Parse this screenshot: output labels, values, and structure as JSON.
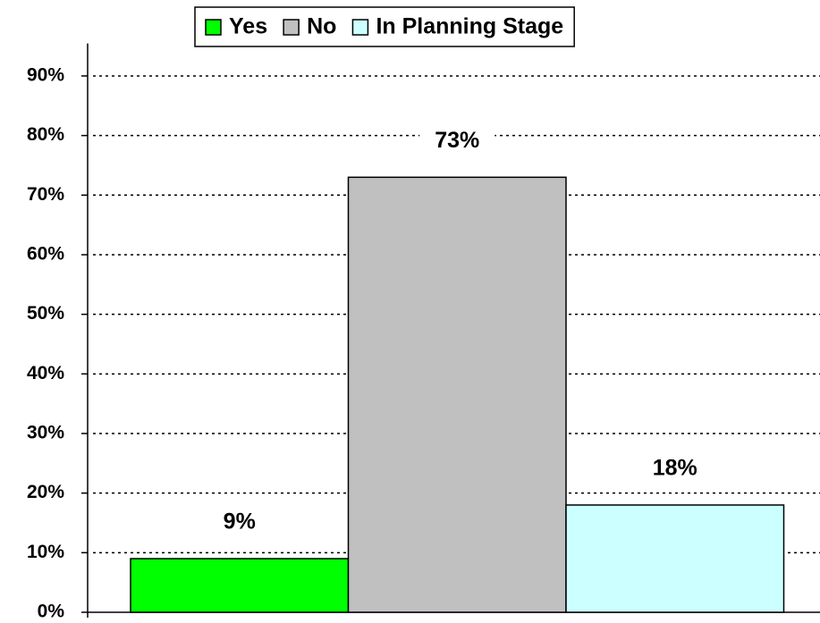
{
  "chart_data": {
    "type": "bar",
    "categories": [
      null
    ],
    "series": [
      {
        "name": "Yes",
        "color": "#00ff00",
        "values": [
          9
        ],
        "value_labels": [
          "9%"
        ]
      },
      {
        "name": "No",
        "color": "#c0c0c0",
        "values": [
          73
        ],
        "value_labels": [
          "73%"
        ]
      },
      {
        "name": "In Planning Stage",
        "color": "#ccffff",
        "values": [
          18
        ],
        "value_labels": [
          "18%"
        ]
      }
    ],
    "ylim": [
      0,
      95
    ],
    "yticks": [
      {
        "value": 0,
        "label": "0%"
      },
      {
        "value": 10,
        "label": "10%"
      },
      {
        "value": 20,
        "label": "20%"
      },
      {
        "value": 30,
        "label": "30%"
      },
      {
        "value": 40,
        "label": "40%"
      },
      {
        "value": 50,
        "label": "50%"
      },
      {
        "value": 60,
        "label": "60%"
      },
      {
        "value": 70,
        "label": "70%"
      },
      {
        "value": 80,
        "label": "80%"
      },
      {
        "value": 90,
        "label": "90%"
      }
    ],
    "grid": true,
    "legend": "top"
  }
}
